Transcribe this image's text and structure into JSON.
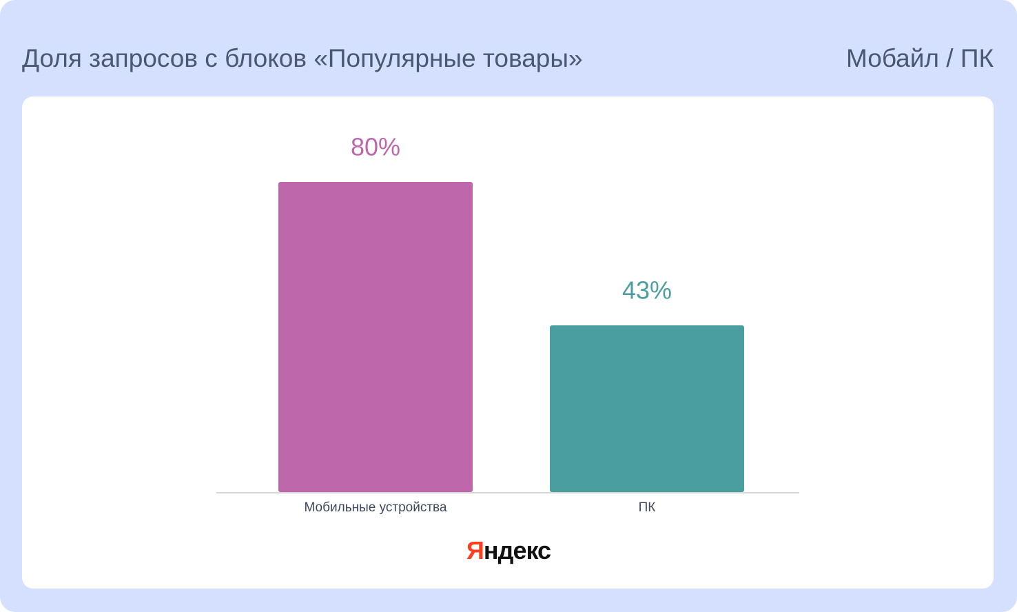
{
  "chart_data": {
    "type": "bar",
    "title": "Доля запросов с блоков «Популярные товары»",
    "subtitle": "Мобайл / ПК",
    "categories": [
      "Мобильные устройства",
      "ПК"
    ],
    "values": [
      80,
      43
    ],
    "value_labels": [
      "80%",
      "43%"
    ],
    "colors": [
      "#be67ab",
      "#4a9ea0"
    ],
    "logo": "Яндекс"
  }
}
